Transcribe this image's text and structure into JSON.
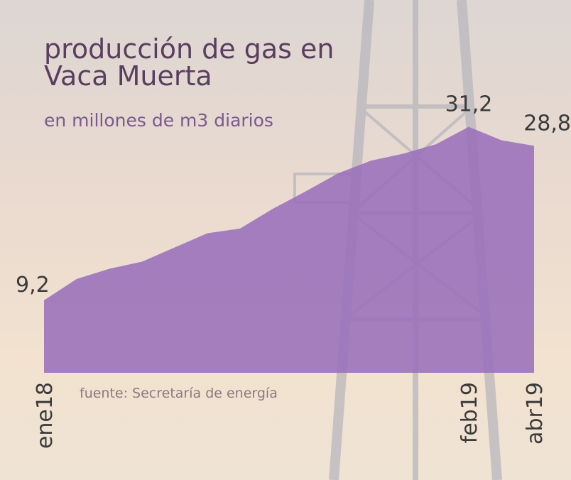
{
  "chart_data": {
    "type": "area",
    "title": "producción de gas en Vaca Muerta",
    "subtitle": "en millones de m3 diarios",
    "source": "fuente: Secretaría de energía",
    "categories": [
      "ene18",
      null,
      null,
      null,
      null,
      null,
      null,
      null,
      null,
      null,
      null,
      null,
      null,
      "feb19",
      null,
      "abr19"
    ],
    "values": [
      9.2,
      11.9,
      13.2,
      14.1,
      15.9,
      17.7,
      18.3,
      20.8,
      23.0,
      25.3,
      26.9,
      27.8,
      29.0,
      31.2,
      29.5,
      28.8
    ],
    "value_labels": [
      "9,2",
      null,
      null,
      null,
      null,
      null,
      null,
      null,
      null,
      null,
      null,
      null,
      null,
      "31,2",
      null,
      "28,8"
    ],
    "color": "#9a6fbb"
  }
}
